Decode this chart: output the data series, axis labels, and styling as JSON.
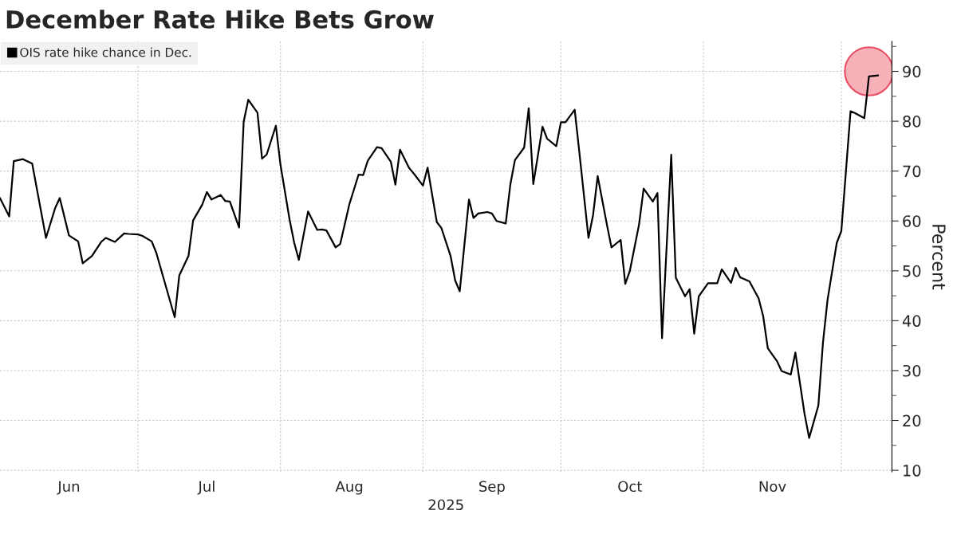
{
  "chart_data": {
    "type": "line",
    "title": "December Rate Hike Bets Grow",
    "xlabel": "2025",
    "ylabel": "Percent",
    "series": [
      {
        "name": "OIS rate hike chance in Dec.",
        "color": "#000000",
        "x": [
          "2025-06-01",
          "2025-06-03",
          "2025-06-04",
          "2025-06-06",
          "2025-06-08",
          "2025-06-11",
          "2025-06-13",
          "2025-06-14",
          "2025-06-16",
          "2025-06-18",
          "2025-06-19",
          "2025-06-21",
          "2025-06-23",
          "2025-06-24",
          "2025-06-26",
          "2025-06-28",
          "2025-06-29",
          "2025-07-01",
          "2025-07-02",
          "2025-07-04",
          "2025-07-05",
          "2025-07-09",
          "2025-07-10",
          "2025-07-12",
          "2025-07-13",
          "2025-07-15",
          "2025-07-16",
          "2025-07-17",
          "2025-07-19",
          "2025-07-20",
          "2025-07-21",
          "2025-07-23",
          "2025-07-24",
          "2025-07-25",
          "2025-07-27",
          "2025-07-28",
          "2025-07-29",
          "2025-07-31",
          "2025-08-01",
          "2025-08-03",
          "2025-08-04",
          "2025-08-05",
          "2025-08-07",
          "2025-08-09",
          "2025-08-10",
          "2025-08-11",
          "2025-08-13",
          "2025-08-14",
          "2025-08-16",
          "2025-08-18",
          "2025-08-19",
          "2025-08-20",
          "2025-08-22",
          "2025-08-23",
          "2025-08-25",
          "2025-08-26",
          "2025-08-27",
          "2025-08-29",
          "2025-08-30",
          "2025-09-01",
          "2025-09-02",
          "2025-09-04",
          "2025-09-05",
          "2025-09-07",
          "2025-09-08",
          "2025-09-09",
          "2025-09-11",
          "2025-09-12",
          "2025-09-13",
          "2025-09-15",
          "2025-09-16",
          "2025-09-17",
          "2025-09-19",
          "2025-09-20",
          "2025-09-21",
          "2025-09-23",
          "2025-09-24",
          "2025-09-25",
          "2025-09-27",
          "2025-09-28",
          "2025-09-30",
          "2025-10-01",
          "2025-10-02",
          "2025-10-04",
          "2025-10-05",
          "2025-10-07",
          "2025-10-08",
          "2025-10-09",
          "2025-10-11",
          "2025-10-12",
          "2025-10-14",
          "2025-10-15",
          "2025-10-16",
          "2025-10-18",
          "2025-10-19",
          "2025-10-21",
          "2025-10-22",
          "2025-10-23",
          "2025-10-25",
          "2025-10-26",
          "2025-10-28",
          "2025-10-29",
          "2025-10-30",
          "2025-10-31",
          "2025-11-02",
          "2025-11-04",
          "2025-11-05",
          "2025-11-07",
          "2025-11-08",
          "2025-11-09",
          "2025-11-11",
          "2025-11-13",
          "2025-11-14",
          "2025-11-15",
          "2025-11-17",
          "2025-11-18",
          "2025-11-20",
          "2025-11-21",
          "2025-11-23",
          "2025-11-24",
          "2025-11-26",
          "2025-11-27",
          "2025-11-28",
          "2025-11-30",
          "2025-12-01",
          "2025-12-03",
          "2025-12-04",
          "2025-12-06",
          "2025-12-07",
          "2025-12-09"
        ],
        "values": [
          64.6,
          60.9,
          72.0,
          72.4,
          71.5,
          56.6,
          62.6,
          64.6,
          57.1,
          55.9,
          51.5,
          53.0,
          55.8,
          56.6,
          55.8,
          57.5,
          57.4,
          57.3,
          57.0,
          55.9,
          53.6,
          40.7,
          49.1,
          53.0,
          60.1,
          63.3,
          65.8,
          64.3,
          65.2,
          64.0,
          63.9,
          58.7,
          79.9,
          84.3,
          81.7,
          72.5,
          73.3,
          79.1,
          71.3,
          60.2,
          55.6,
          52.2,
          61.9,
          58.2,
          58.3,
          58.1,
          54.7,
          55.4,
          63.4,
          69.3,
          69.2,
          72.1,
          74.8,
          74.6,
          71.9,
          67.3,
          74.3,
          70.6,
          69.5,
          67.1,
          70.7,
          59.8,
          58.6,
          53.0,
          48.1,
          45.9,
          64.3,
          60.6,
          61.5,
          61.8,
          61.5,
          60.0,
          59.5,
          67.3,
          72.2,
          74.7,
          82.6,
          67.4,
          78.9,
          76.5,
          75.0,
          79.8,
          79.8,
          82.3,
          73.9,
          56.6,
          61.2,
          69.0,
          59.3,
          54.7,
          56.2,
          47.4,
          50.0,
          59.3,
          66.5,
          63.9,
          65.6,
          36.5,
          73.3,
          48.6,
          44.9,
          46.3,
          37.4,
          44.9,
          47.5,
          47.5,
          50.3,
          47.6,
          50.6,
          48.7,
          47.9,
          44.5,
          40.9,
          34.5,
          31.9,
          29.9,
          29.2,
          33.6,
          21.3,
          16.5,
          23.0,
          35.6,
          44.2,
          55.6,
          58.0,
          82.0,
          81.6,
          80.6,
          89.0,
          89.2
        ]
      },
      {
        "type": "scatter",
        "color": "#f5a3ad",
        "marker": "circle",
        "x": [
          "2025-12-07"
        ],
        "values": [
          90
        ]
      }
    ],
    "xlim": [
      "2025-06-01",
      "2025-12-12"
    ],
    "xticks": [
      {
        "value": "2025-06-16",
        "label": "Jun"
      },
      {
        "value": "2025-07-01",
        "label": null
      },
      {
        "value": "2025-07-16",
        "label": "Jul"
      },
      {
        "value": "2025-08-01",
        "label": null
      },
      {
        "value": "2025-08-16",
        "label": "Aug"
      },
      {
        "value": "2025-09-01",
        "label": null
      },
      {
        "value": "2025-09-16",
        "label": "Sep"
      },
      {
        "value": "2025-10-01",
        "label": null
      },
      {
        "value": "2025-10-16",
        "label": "Oct"
      },
      {
        "value": "2025-11-01",
        "label": null
      },
      {
        "value": "2025-11-16",
        "label": "Nov"
      },
      {
        "value": "2025-12-01",
        "label": null
      }
    ],
    "ylim": [
      9.7,
      96
    ],
    "yticks": [
      10,
      {
        "value": 15,
        "label": null
      },
      20,
      {
        "value": 25,
        "label": null
      },
      30,
      {
        "value": 35,
        "label": null
      },
      40,
      {
        "value": 45,
        "label": null
      },
      50,
      {
        "value": 55,
        "label": null
      },
      60,
      {
        "value": 65,
        "label": null
      },
      70,
      {
        "value": 75,
        "label": null
      },
      80,
      {
        "value": 85,
        "label": null
      },
      90,
      {
        "value": 95,
        "label": null
      }
    ],
    "grid": true,
    "legend": "top left",
    "marker": "none",
    "line_style": "solid"
  }
}
